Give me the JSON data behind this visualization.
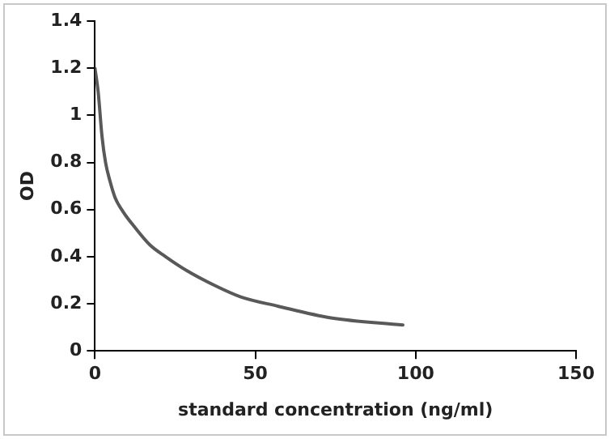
{
  "chart_data": {
    "type": "line",
    "xlabel": "standard concentration (ng/ml)",
    "ylabel": "OD",
    "xlim": [
      0,
      150
    ],
    "xticks": [
      0,
      50,
      100,
      150
    ],
    "ylim": [
      0,
      1.4
    ],
    "yticks": [
      0,
      0.2,
      0.4,
      0.6,
      0.8,
      1,
      1.2,
      1.4
    ],
    "grid": false,
    "legend": false,
    "marker": "none",
    "series": [
      {
        "color": "#595959",
        "x": [
          0,
          1,
          2.2,
          3.3,
          4.7,
          6.3,
          8.8,
          12.1,
          17.1,
          22,
          28.7,
          37,
          45.3,
          57,
          73.6,
          96
        ],
        "values": [
          1.2,
          1.1,
          0.91,
          0.8,
          0.72,
          0.65,
          0.59,
          0.53,
          0.45,
          0.4,
          0.34,
          0.28,
          0.23,
          0.19,
          0.14,
          0.11
        ]
      }
    ]
  }
}
